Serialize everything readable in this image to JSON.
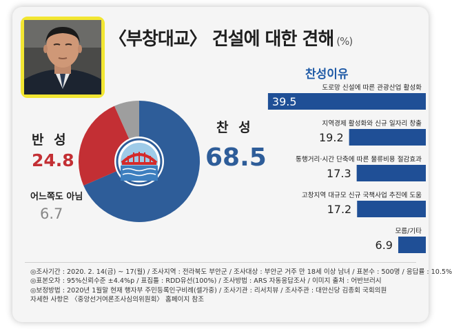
{
  "header": {
    "title": "〈부창대교〉 건설에 대한 견해",
    "unit": "(%)"
  },
  "colors": {
    "agree": "#2e5d99",
    "disagree": "#c32f34",
    "neutral": "#9e9e9e",
    "bar": "#1f4f96",
    "accent_title": "#1f5aa6"
  },
  "chart_data": [
    {
      "type": "pie",
      "labels": [
        "찬 성",
        "반 성",
        "어느쪽도 아님"
      ],
      "values": [
        68.5,
        24.8,
        6.7
      ],
      "display_values": [
        "68.5",
        "24.8",
        "6.7"
      ]
    },
    {
      "type": "bar",
      "title": "찬성이유",
      "categories": [
        "도로망 신설에 따른 관광산업 활성화",
        "지역경제 활성화와 신규 일자리 창출",
        "통행거리·시간 단축에 따른 물류비용 절감효과",
        "고창지역 대규모 신규 국책사업 추진에 도움",
        "모름/기타"
      ],
      "values": [
        39.5,
        19.2,
        17.3,
        17.2,
        6.9
      ],
      "display_values": [
        "39.5",
        "19.2",
        "17.3",
        "17.2",
        "6.9"
      ],
      "xlim": [
        0,
        40
      ]
    }
  ],
  "footnote": {
    "lines": [
      "◎조사기간 : 2020. 2. 14(금) ~ 17(월) / 조사지역 : 전라북도 부안군 / 조사대상 : 부안군 거주 만 18세 이상 남녀 / 표본수 : 500명 / 응답률 : 10.5%",
      "◎표본오차 : 95%신뢰수준 ±4.4%p / 표집틀 : RDD유선(100%) / 조사방법 : ARS 자동응답조사 / 이미지 출처 : 어반브러시",
      "◎보정방법 : 2020년 1월말 현재 행자부 주민등록인구비례(셀가중) / 조사기관 : 리서치뷰 / 조사주관 : 대안신당 김종회 국회의원",
      "자세한 사항은 〈중앙선거여론조사심의위원회〉 홈페이지 참조"
    ]
  }
}
